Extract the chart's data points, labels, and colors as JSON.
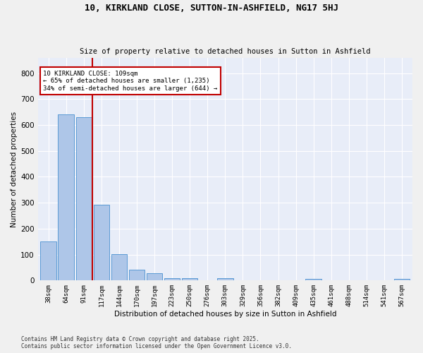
{
  "title1": "10, KIRKLAND CLOSE, SUTTON-IN-ASHFIELD, NG17 5HJ",
  "title2": "Size of property relative to detached houses in Sutton in Ashfield",
  "xlabel": "Distribution of detached houses by size in Sutton in Ashfield",
  "ylabel": "Number of detached properties",
  "categories": [
    "38sqm",
    "64sqm",
    "91sqm",
    "117sqm",
    "144sqm",
    "170sqm",
    "197sqm",
    "223sqm",
    "250sqm",
    "276sqm",
    "303sqm",
    "329sqm",
    "356sqm",
    "382sqm",
    "409sqm",
    "435sqm",
    "461sqm",
    "488sqm",
    "514sqm",
    "541sqm",
    "567sqm"
  ],
  "values": [
    150,
    642,
    630,
    293,
    103,
    41,
    28,
    10,
    10,
    0,
    10,
    0,
    0,
    0,
    0,
    5,
    0,
    0,
    0,
    0,
    7
  ],
  "bar_color": "#aec6e8",
  "bar_edge_color": "#5b9bd5",
  "vline_x": 2.5,
  "vline_color": "#c00000",
  "annotation_text": "10 KIRKLAND CLOSE: 109sqm\n← 65% of detached houses are smaller (1,235)\n34% of semi-detached houses are larger (644) →",
  "annotation_box_color": "#c00000",
  "plot_bg_color": "#e8edf8",
  "fig_bg_color": "#f0f0f0",
  "grid_color": "#ffffff",
  "ylim": [
    0,
    860
  ],
  "yticks": [
    0,
    100,
    200,
    300,
    400,
    500,
    600,
    700,
    800
  ],
  "footer": "Contains HM Land Registry data © Crown copyright and database right 2025.\nContains public sector information licensed under the Open Government Licence v3.0."
}
